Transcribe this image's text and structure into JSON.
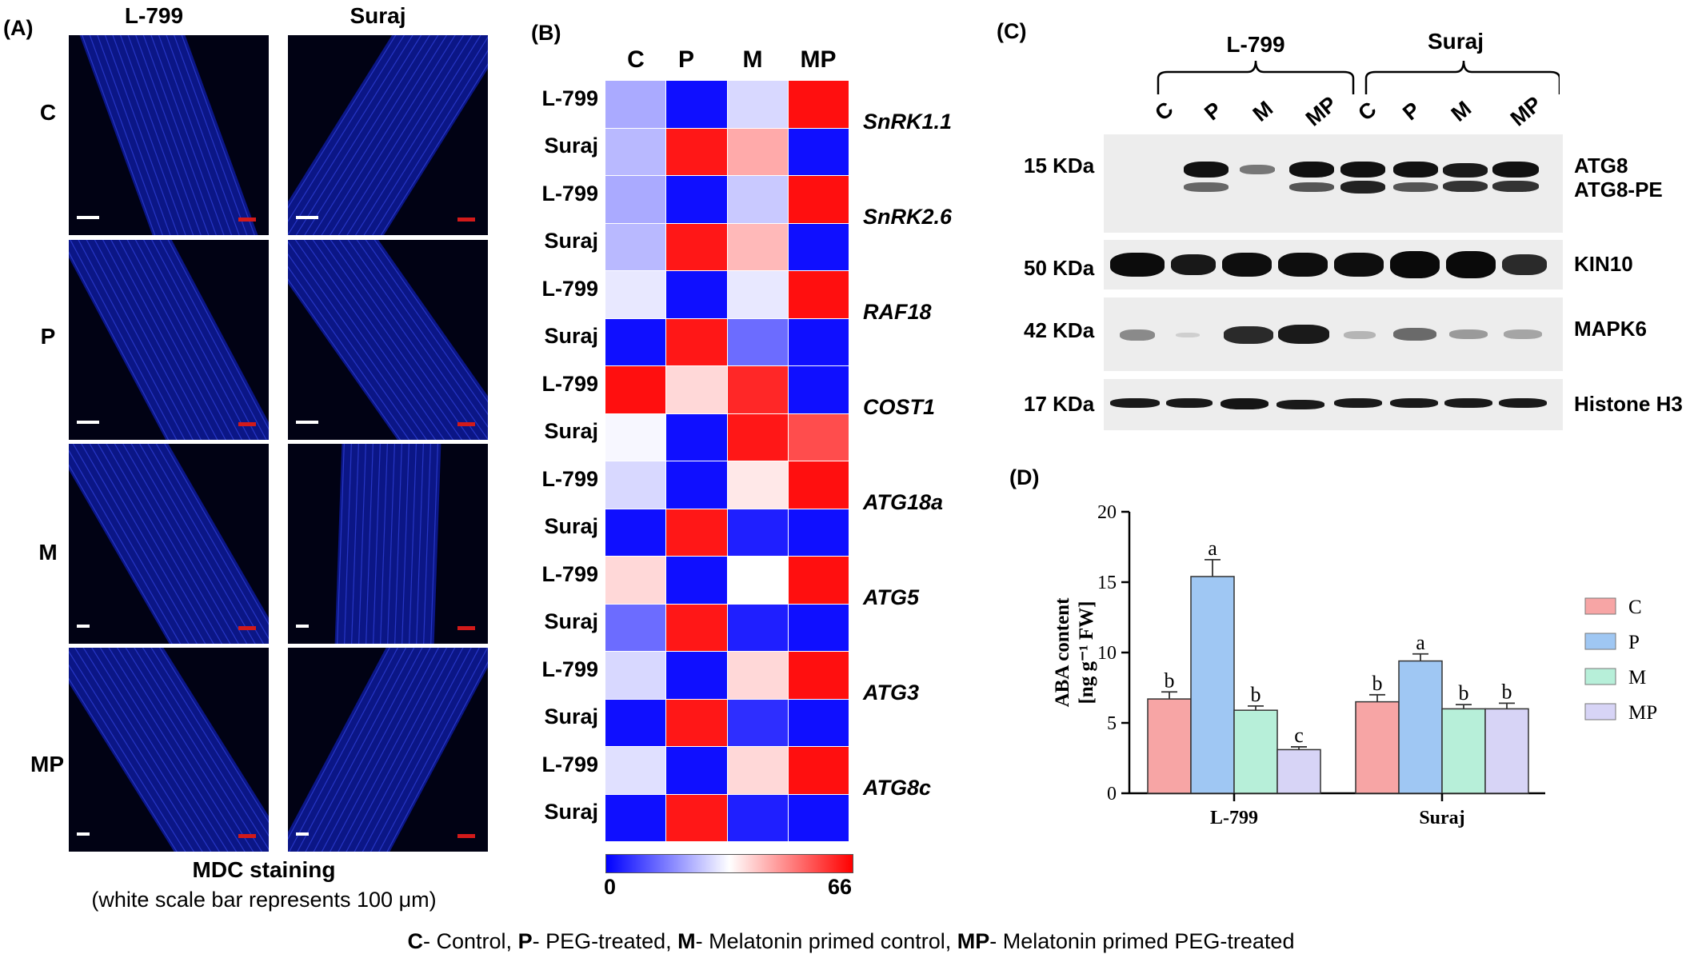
{
  "panelA": {
    "label": "(A)",
    "columns": [
      "L-799",
      "Suraj"
    ],
    "rows": [
      "C",
      "P",
      "M",
      "MP"
    ],
    "caption_title": "MDC staining",
    "caption_note": "(white scale bar represents 100 μm)"
  },
  "panelB": {
    "label": "(B)",
    "columns": [
      "C",
      "P",
      "M",
      "MP"
    ],
    "genes": [
      "SnRK1.1",
      "SnRK2.6",
      "RAF18",
      "COST1",
      "ATG18a",
      "ATG5",
      "ATG3",
      "ATG8c"
    ],
    "row_cultivars": [
      "L-799",
      "Suraj"
    ],
    "scale_min": "0",
    "scale_max": "66",
    "colors": {
      "low": "#0000ff",
      "mid": "#ffffff",
      "high": "#ff0000"
    },
    "values": [
      [
        22,
        2,
        28,
        64
      ],
      [
        24,
        63,
        44,
        2
      ],
      [
        22,
        2,
        26,
        64
      ],
      [
        24,
        63,
        42,
        2
      ],
      [
        30,
        2,
        30,
        64
      ],
      [
        2,
        63,
        14,
        2
      ],
      [
        64,
        38,
        61,
        2
      ],
      [
        32,
        2,
        63,
        56
      ],
      [
        28,
        2,
        36,
        64
      ],
      [
        2,
        63,
        4,
        2
      ],
      [
        38,
        2,
        33,
        64
      ],
      [
        14,
        63,
        4,
        2
      ],
      [
        28,
        2,
        38,
        64
      ],
      [
        2,
        63,
        6,
        2
      ],
      [
        29,
        2,
        38,
        64
      ],
      [
        2,
        63,
        4,
        2
      ]
    ]
  },
  "panelC": {
    "label": "(C)",
    "groups": [
      "L-799",
      "Suraj"
    ],
    "lanes": [
      "C",
      "P",
      "M",
      "MP",
      "C",
      "P",
      "M",
      "MP"
    ],
    "blots": [
      {
        "size": "15 KDa",
        "names": [
          "ATG8",
          "ATG8-PE"
        ]
      },
      {
        "size": "50 KDa",
        "names": [
          "KIN10"
        ]
      },
      {
        "size": "42 KDa",
        "names": [
          "MAPK6"
        ]
      },
      {
        "size": "17 KDa",
        "names": [
          "Histone H3"
        ]
      }
    ]
  },
  "panelD": {
    "label": "(D)"
  },
  "chart_data": {
    "type": "bar",
    "categories": [
      "L-799",
      "Suraj"
    ],
    "ylabel": "ABA content [ng g⁻¹ FW]",
    "ylim": [
      0,
      20
    ],
    "yticks": [
      "0",
      "5",
      "10",
      "15",
      "20"
    ],
    "series": [
      {
        "name": "C",
        "color": "#f7a5a5",
        "values": [
          6.7,
          6.5
        ],
        "errors": [
          0.5,
          0.5
        ],
        "letters": [
          "b",
          "b"
        ]
      },
      {
        "name": "P",
        "color": "#9fc7f3",
        "values": [
          15.4,
          9.4
        ],
        "errors": [
          1.2,
          0.5
        ],
        "letters": [
          "a",
          "a"
        ]
      },
      {
        "name": "M",
        "color": "#b7efd9",
        "values": [
          5.9,
          6.0
        ],
        "errors": [
          0.3,
          0.3
        ],
        "letters": [
          "b",
          "b"
        ]
      },
      {
        "name": "MP",
        "color": "#d7d4f6",
        "values": [
          3.1,
          6.0
        ],
        "errors": [
          0.2,
          0.4
        ],
        "letters": [
          "c",
          "b"
        ]
      }
    ]
  },
  "footer": [
    {
      "key": "C",
      "text": "- Control, "
    },
    {
      "key": "P",
      "text": "- PEG-treated, "
    },
    {
      "key": "M",
      "text": "- Melatonin primed control, "
    },
    {
      "key": "MP",
      "text": "- Melatonin primed PEG-treated"
    }
  ]
}
